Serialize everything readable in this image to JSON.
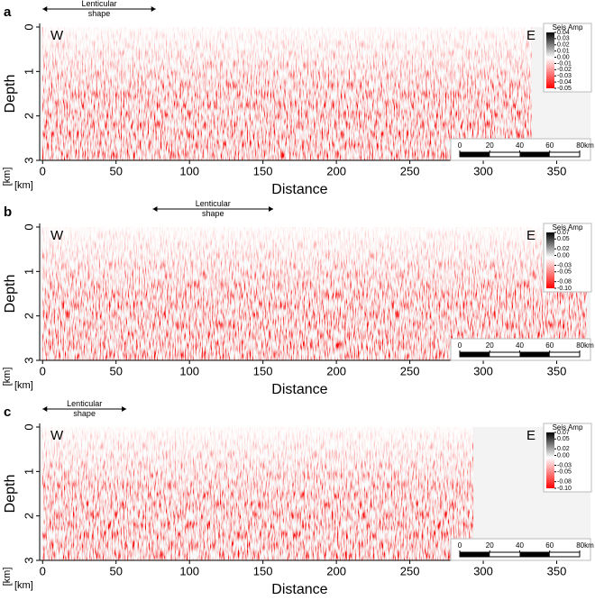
{
  "chart_data": [
    {
      "type": "seismic",
      "panel_label": "a",
      "xlabel": "Distance",
      "ylabel": "Depth",
      "x_unit": "[km]",
      "y_unit": "[km]",
      "xlim": [
        -2,
        373
      ],
      "xticks": [
        0,
        50,
        100,
        150,
        200,
        250,
        300,
        350
      ],
      "ylim": [
        3,
        0
      ],
      "yticks": [
        0,
        1,
        2,
        3
      ],
      "data_extent": [
        0,
        333
      ],
      "annotations": [
        "W",
        "E"
      ],
      "lenticular_label": "Lenticular shape",
      "lenticular_span": [
        0,
        77
      ],
      "colorbar": {
        "title": "Seis Amp",
        "clim": [
          -0.05,
          0.04
        ],
        "ticks": [
          0.04,
          0.03,
          0.02,
          0.01,
          {
            "value": 0,
            "label": "0.00"
          },
          -0.01,
          -0.02,
          -0.03,
          -0.04,
          -0.05
        ]
      },
      "scale_bar": [
        0,
        20,
        40,
        60,
        {
          "value": 80,
          "label": "80km"
        }
      ]
    },
    {
      "type": "seismic",
      "panel_label": "b",
      "xlabel": "Distance",
      "ylabel": "Depth",
      "x_unit": "[km]",
      "y_unit": "[km]",
      "xlim": [
        -2,
        373
      ],
      "xticks": [
        0,
        50,
        100,
        150,
        200,
        250,
        300,
        350
      ],
      "ylim": [
        3,
        0
      ],
      "yticks": [
        0,
        1,
        2,
        3
      ],
      "data_extent": [
        0,
        370
      ],
      "annotations": [
        "W",
        "E"
      ],
      "lenticular_label": "Lenticular shape",
      "lenticular_span": [
        75,
        157
      ],
      "colorbar": {
        "title": "Seis Amp",
        "clim": [
          -0.1,
          0.07
        ],
        "ticks": [
          0.07,
          0.05,
          0.02,
          {
            "value": 0,
            "label": "0.00"
          },
          -0.03,
          -0.05,
          -0.08,
          {
            "value": -0.1,
            "label": "-0.10"
          }
        ]
      },
      "scale_bar": [
        0,
        20,
        40,
        60,
        {
          "value": 80,
          "label": "80km"
        }
      ]
    },
    {
      "type": "seismic",
      "panel_label": "c",
      "xlabel": "Distance",
      "ylabel": "Depth",
      "x_unit": "[km]",
      "y_unit": "[km]",
      "xlim": [
        -2,
        373
      ],
      "xticks": [
        0,
        50,
        100,
        150,
        200,
        250,
        300,
        350
      ],
      "ylim": [
        3,
        0
      ],
      "yticks": [
        0,
        1,
        2,
        3
      ],
      "data_extent": [
        0,
        293
      ],
      "annotations": [
        "W",
        "E"
      ],
      "lenticular_label": "Lenticular shape",
      "lenticular_span": [
        0,
        57
      ],
      "colorbar": {
        "title": "Seis Amp",
        "clim": [
          -0.1,
          0.07
        ],
        "ticks": [
          0.07,
          0.05,
          0.02,
          {
            "value": 0,
            "label": "0.00"
          },
          -0.03,
          -0.05,
          -0.08,
          {
            "value": -0.1,
            "label": "-0.10"
          }
        ]
      },
      "scale_bar": [
        0,
        20,
        40,
        60,
        {
          "value": 80,
          "label": "80km"
        }
      ]
    }
  ]
}
